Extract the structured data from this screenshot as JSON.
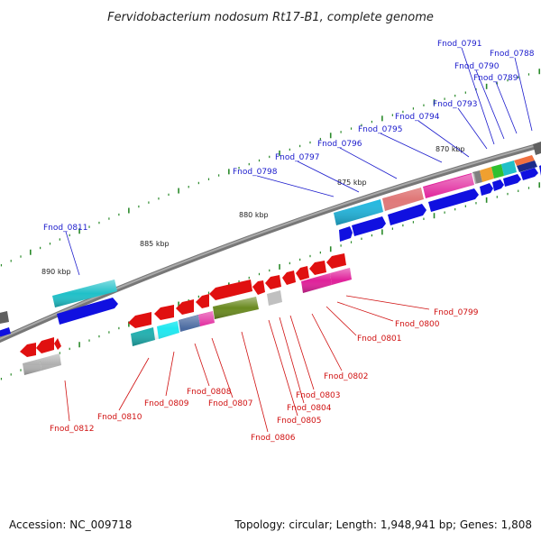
{
  "title": "Fervidobacterium nodosum Rt17-B1, complete genome",
  "footer": {
    "accession": "Accession: NC_009718",
    "summary": "Topology: circular; Length: 1,948,941 bp; Genes: 1,808"
  },
  "scale_labels": [
    "890 kbp",
    "885 kbp",
    "880 kbp",
    "875 kbp",
    "870 kbp"
  ],
  "top_gene_labels": [
    "Fnod_0791",
    "Fnod_0788",
    "Fnod_0790",
    "Fnod_0789",
    "Fnod_0793",
    "Fnod_0794",
    "Fnod_0795",
    "Fnod_0796",
    "Fnod_0797",
    "Fnod_0798",
    "Fnod_0811"
  ],
  "bottom_gene_labels": [
    "Fnod_0799",
    "Fnod_0800",
    "Fnod_0801",
    "Fnod_0802",
    "Fnod_0803",
    "Fnod_0804",
    "Fnod_0805",
    "Fnod_0806",
    "Fnod_0807",
    "Fnod_0808",
    "Fnod_0809",
    "Fnod_0810",
    "Fnod_0812"
  ],
  "colors": {
    "backbone": "#808080",
    "forward_strand": "#1010e0",
    "reverse_strand": "#e01010",
    "top_label": "#1a1acc",
    "bottom_label": "#d01010",
    "tick": "#2a8a2a",
    "cyan": "#20c0c8",
    "magenta": "#e0209a",
    "salmon": "#e07070",
    "olive": "#6a8a20",
    "steel": "#4a6aa0",
    "gray": "#b0b0b0"
  }
}
